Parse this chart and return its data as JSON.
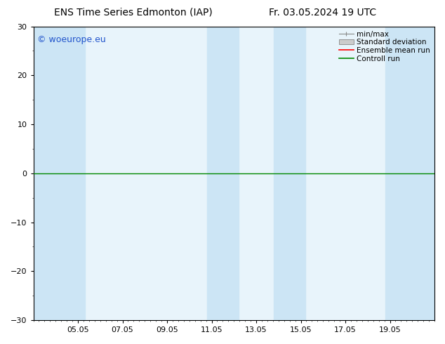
{
  "title_left": "ENS Time Series Edmonton (IAP)",
  "title_right": "Fr. 03.05.2024 19 UTC",
  "ylim": [
    -30,
    30
  ],
  "yticks": [
    -30,
    -20,
    -10,
    0,
    10,
    20,
    30
  ],
  "xtick_labels": [
    "05.05",
    "07.05",
    "09.05",
    "11.05",
    "13.05",
    "15.05",
    "17.05",
    "19.05"
  ],
  "xtick_positions": [
    2,
    4,
    6,
    8,
    10,
    12,
    14,
    16
  ],
  "xlim": [
    0,
    18
  ],
  "background_color": "#ffffff",
  "plot_bg_color": "#e8f4fb",
  "shaded_columns": [
    {
      "x_start": 0,
      "x_end": 2.3,
      "color": "#cce5f5"
    },
    {
      "x_start": 7.8,
      "x_end": 9.2,
      "color": "#cce5f5"
    },
    {
      "x_start": 10.8,
      "x_end": 12.2,
      "color": "#cce5f5"
    },
    {
      "x_start": 15.8,
      "x_end": 18,
      "color": "#cce5f5"
    }
  ],
  "green_line_y": 0,
  "legend_labels": [
    "min/max",
    "Standard deviation",
    "Ensemble mean run",
    "Controll run"
  ],
  "minmax_color": "#888888",
  "std_facecolor": "#cccccc",
  "std_edgecolor": "#888888",
  "ensemble_color": "#ff0000",
  "control_color": "#008800",
  "watermark": "© woeurope.eu",
  "watermark_color": "#2255cc",
  "title_fontsize": 10,
  "tick_fontsize": 8,
  "legend_fontsize": 7.5,
  "watermark_fontsize": 9
}
